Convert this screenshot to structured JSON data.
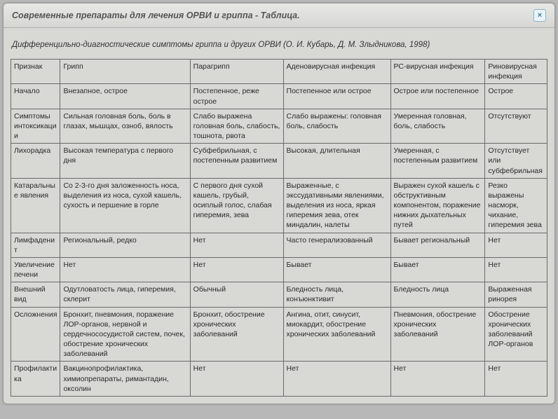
{
  "header": {
    "title": "Современные препараты для лечения ОРВИ и гриппа - Таблица.",
    "close_symbol": "×"
  },
  "caption": "Дифференцильно-диагностические симптомы гриппа и других ОРВИ (О. И. Кубарь, Д. М. Злыдникова, 1998)",
  "table": {
    "columns": [
      "Признак",
      "Грипп",
      "Парагрипп",
      "Аденовирусная инфекция",
      "РС-вирусная инфекция",
      "Риновирусная инфекция"
    ],
    "col_widths": [
      "col0",
      "col1",
      "col2",
      "col3",
      "col4",
      "col5"
    ],
    "rows": [
      [
        "Начало",
        "Внезапное, острое",
        "Постепенное, реже острое",
        "Постепенное или острое",
        "Острое или постепенное",
        "Острое"
      ],
      [
        "Симптомы интоксикации",
        "Сильная головная боль, боль в глазах, мышцах, озноб, вялость",
        "Слабо выражена головная боль, слабость, тошнота, рвота",
        "Слабо выражены: головная боль, слабость",
        "Умеренная головная, боль, слабость",
        "Отсутствуют"
      ],
      [
        "Лихорадка",
        "Высокая температура с первого дня",
        "Субфебрильная, с постепенным развитием",
        "Высокая, длительная",
        "Умеренная, с постепенным развитием",
        "Отсутствует или субфебрильная"
      ],
      [
        "Катаральные явления",
        "Со 2-3-го дня заложенность носа, выделения из носа, сухой кашель, сухость и першение в горле",
        "С первого дня сухой кашель, грубый, осиплый голос, слабая гиперемия, зева",
        "Выраженные, с экссудативными явлениями, выделения из носа, яркая гиперемия зева, отек миндалин, налеты",
        "Выражен сухой кашель с обструктивным компонентом, поражение нижних дыхательных путей",
        "Резко выражены насморк, чихание, гиперемия зева"
      ],
      [
        "Лимфаденит",
        "Региональный, редко",
        "Нет",
        "Часто генерализованный",
        "Бывает региональный",
        "Нет"
      ],
      [
        "Увеличение печени",
        "Нет",
        "Нет",
        "Бывает",
        "Бывает",
        "Нет"
      ],
      [
        "Внешний вид",
        "Одутловатость лица, гиперемия, склерит",
        "Обычный",
        "Бледность лица, конъюнктивит",
        "Бледность лица",
        "Выраженная ринорея"
      ],
      [
        "Осложнения",
        "Бронхит, пневмония, поражение ЛОР-органов, нервной и сердечнососудистой систем, почек, обострение хронических заболеваний",
        "Бронхит, обострение хронических заболеваний",
        "Ангина, отит, синусит, миокардит, обострение хронических заболеваний",
        "Пневмония, обострение хронических заболеваний",
        "Обострение хронических заболеваний ЛОР-органов"
      ],
      [
        "Профилактика",
        "Вакцинопрофилактика, химиопрепараты, римантадин, оксолин",
        "Нет",
        "Нет",
        "Нет",
        "Нет"
      ]
    ]
  }
}
